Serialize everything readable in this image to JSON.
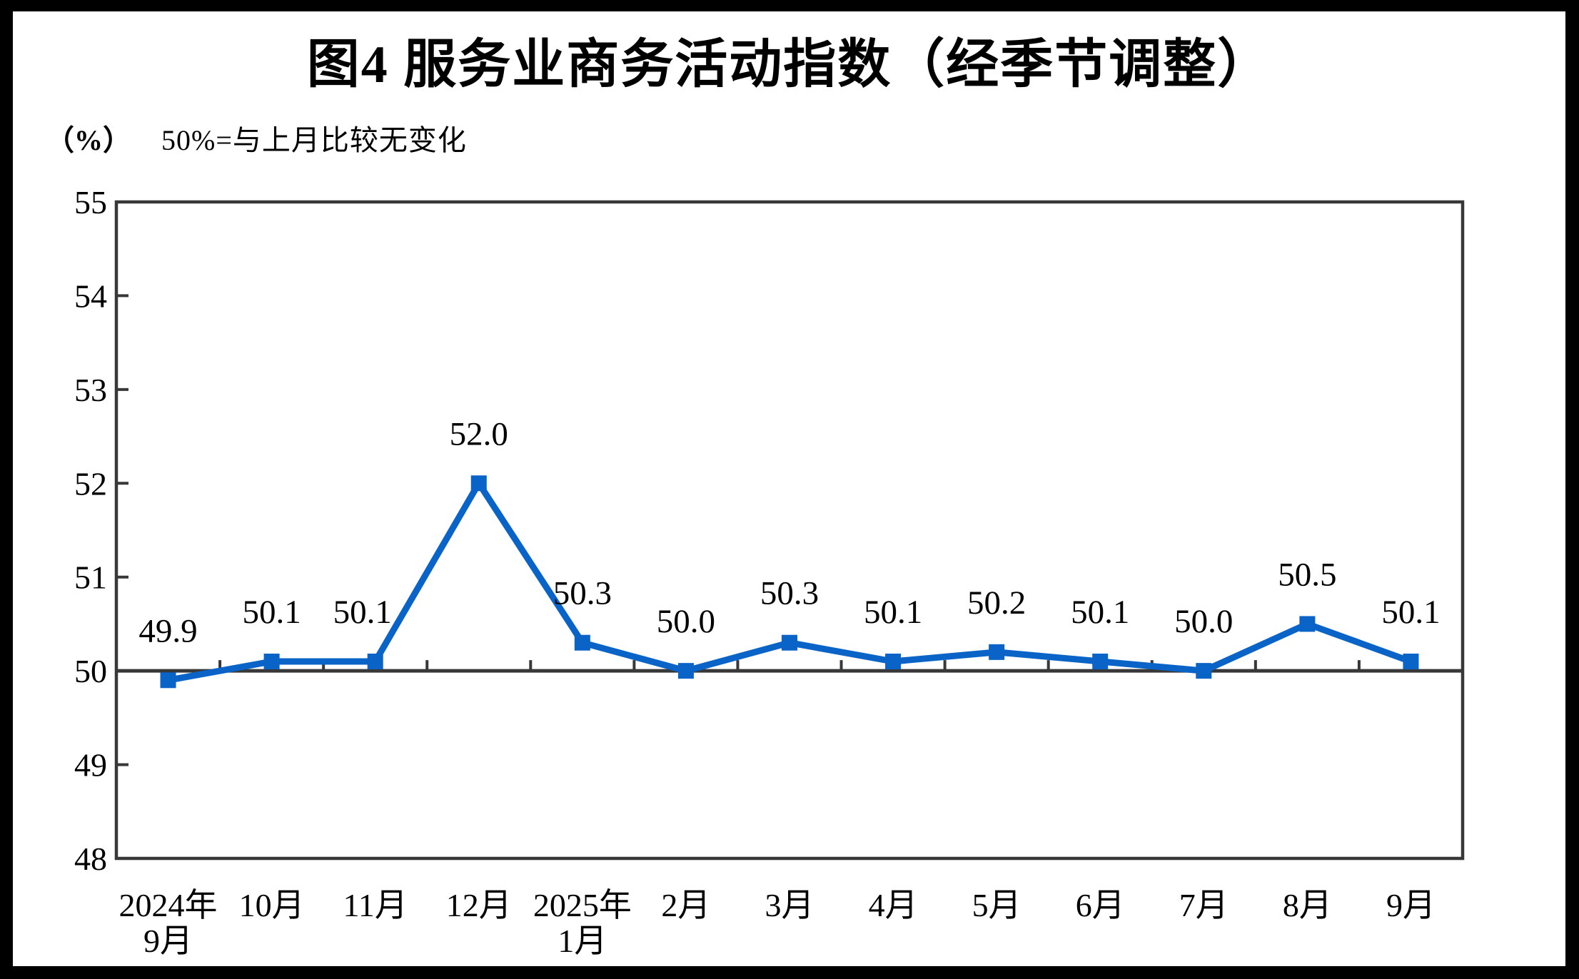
{
  "page": {
    "title": "图4 服务业商务活动指数（经季节调整）",
    "unit_label": "（%）",
    "note": "50%=与上月比较无变化"
  },
  "chart_data": {
    "type": "line",
    "title": "图4 服务业商务活动指数（经季节调整）",
    "unit": "%",
    "reference_note": "50%=与上月比较无变化",
    "categories": [
      "2024年\n9月",
      "10月",
      "11月",
      "12月",
      "2025年\n1月",
      "2月",
      "3月",
      "4月",
      "5月",
      "6月",
      "7月",
      "8月",
      "9月"
    ],
    "series": [
      {
        "name": "服务业商务活动指数",
        "values": [
          49.9,
          50.1,
          50.1,
          52.0,
          50.3,
          50.0,
          50.3,
          50.1,
          50.2,
          50.1,
          50.0,
          50.5,
          50.1
        ]
      }
    ],
    "data_labels": [
      "49.9",
      "50.1",
      "50.1",
      "52.0",
      "50.3",
      "50.0",
      "50.3",
      "50.1",
      "50.2",
      "50.1",
      "50.0",
      "50.5",
      "50.1"
    ],
    "ylim": [
      48,
      55
    ],
    "yticks": [
      48,
      49,
      50,
      51,
      52,
      53,
      54,
      55
    ],
    "ytick_interval": 1,
    "reference_line": 50,
    "grid": false,
    "legend": "none",
    "colors": {
      "series_line": "#0A63C6",
      "axis": "#383838",
      "text": "#000000",
      "background": "#FFFFFF",
      "frame": "#000000"
    },
    "marker": "square",
    "label_dx": [
      0,
      0,
      -18,
      0,
      0,
      0,
      0,
      0,
      0,
      0,
      0,
      0,
      0
    ]
  }
}
